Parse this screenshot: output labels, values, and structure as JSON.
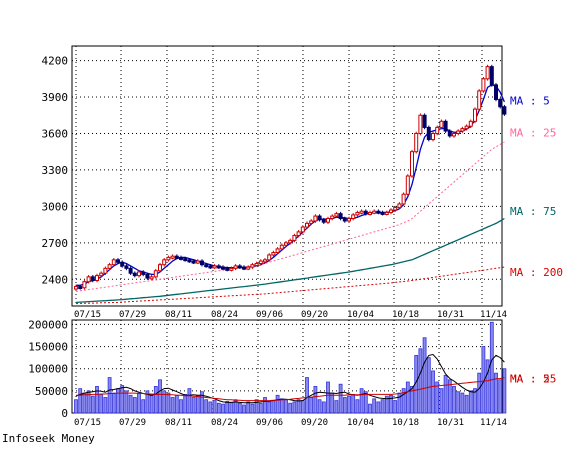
{
  "footer": "Infoseek Money",
  "colors": {
    "up": "#cc0000",
    "down": "#000066",
    "volume": "#3333dd",
    "ma5": "#0000cc",
    "ma25": "#ff6699",
    "ma75": "#006666",
    "ma200": "#dd0000"
  },
  "chart_data": [
    {
      "type": "candlestick",
      "title": "",
      "x_ticks": [
        "07/15",
        "07/29",
        "08/11",
        "08/24",
        "09/06",
        "09/20",
        "10/04",
        "10/18",
        "10/31",
        "11/14"
      ],
      "y_ticks": [
        2400,
        2700,
        3000,
        3300,
        3600,
        3900,
        4200
      ],
      "ylim": [
        2180,
        4320
      ],
      "grid": true,
      "close": [
        2340,
        2330,
        2380,
        2420,
        2390,
        2430,
        2450,
        2490,
        2520,
        2560,
        2540,
        2510,
        2490,
        2450,
        2430,
        2460,
        2440,
        2410,
        2420,
        2470,
        2520,
        2560,
        2580,
        2590,
        2580,
        2570,
        2560,
        2550,
        2540,
        2550,
        2520,
        2510,
        2500,
        2510,
        2500,
        2490,
        2480,
        2490,
        2510,
        2500,
        2490,
        2500,
        2520,
        2530,
        2550,
        2560,
        2600,
        2620,
        2650,
        2680,
        2700,
        2720,
        2760,
        2790,
        2830,
        2860,
        2880,
        2920,
        2890,
        2870,
        2900,
        2920,
        2940,
        2900,
        2880,
        2900,
        2930,
        2950,
        2960,
        2940,
        2950,
        2960,
        2950,
        2940,
        2950,
        2970,
        2990,
        3020,
        3100,
        3250,
        3450,
        3600,
        3750,
        3650,
        3550,
        3600,
        3650,
        3700,
        3620,
        3580,
        3600,
        3620,
        3640,
        3660,
        3700,
        3800,
        3950,
        4050,
        4150,
        4000,
        3880,
        3820,
        3760
      ],
      "series": [
        {
          "name": "MA : 5",
          "values": [
            2350,
            2350,
            2360,
            2380,
            2390,
            2400,
            2420,
            2450,
            2480,
            2510,
            2530,
            2540,
            2530,
            2510,
            2490,
            2470,
            2460,
            2450,
            2440,
            2440,
            2460,
            2490,
            2520,
            2550,
            2570,
            2580,
            2580,
            2570,
            2560,
            2550,
            2540,
            2530,
            2520,
            2510,
            2505,
            2500,
            2495,
            2495,
            2495,
            2500,
            2500,
            2500,
            2505,
            2510,
            2520,
            2535,
            2555,
            2580,
            2610,
            2640,
            2670,
            2695,
            2725,
            2755,
            2790,
            2820,
            2855,
            2880,
            2895,
            2895,
            2895,
            2900,
            2910,
            2910,
            2905,
            2900,
            2900,
            2910,
            2925,
            2935,
            2945,
            2950,
            2950,
            2950,
            2950,
            2955,
            2965,
            2980,
            3015,
            3080,
            3180,
            3320,
            3470,
            3570,
            3610,
            3620,
            3630,
            3640,
            3640,
            3620,
            3610,
            3610,
            3620,
            3635,
            3660,
            3710,
            3790,
            3880,
            3980,
            4000,
            3990,
            3940,
            3860
          ]
        },
        {
          "name": "MA : 25",
          "values": [
            2300,
            2305,
            2310,
            2315,
            2320,
            2325,
            2330,
            2335,
            2340,
            2345,
            2350,
            2355,
            2360,
            2365,
            2370,
            2375,
            2380,
            2385,
            2390,
            2395,
            2400,
            2405,
            2410,
            2415,
            2420,
            2425,
            2430,
            2435,
            2440,
            2445,
            2450,
            2455,
            2460,
            2465,
            2470,
            2475,
            2480,
            2485,
            2490,
            2495,
            2500,
            2505,
            2510,
            2515,
            2520,
            2530,
            2540,
            2550,
            2560,
            2570,
            2580,
            2590,
            2600,
            2610,
            2620,
            2630,
            2640,
            2650,
            2660,
            2670,
            2680,
            2690,
            2700,
            2710,
            2720,
            2730,
            2740,
            2750,
            2760,
            2770,
            2780,
            2790,
            2800,
            2810,
            2820,
            2830,
            2840,
            2850,
            2865,
            2880,
            2900,
            2930,
            2960,
            2990,
            3020,
            3050,
            3080,
            3110,
            3140,
            3170,
            3200,
            3230,
            3260,
            3290,
            3320,
            3350,
            3380,
            3410,
            3440,
            3470,
            3490,
            3510,
            3530
          ]
        },
        {
          "name": "MA : 75",
          "values": [
            2210,
            2212,
            2214,
            2216,
            2218,
            2220,
            2222,
            2224,
            2226,
            2228,
            2230,
            2233,
            2236,
            2239,
            2242,
            2245,
            2248,
            2251,
            2254,
            2257,
            2260,
            2264,
            2268,
            2272,
            2276,
            2280,
            2284,
            2288,
            2292,
            2296,
            2300,
            2304,
            2308,
            2312,
            2316,
            2320,
            2324,
            2328,
            2332,
            2336,
            2340,
            2344,
            2348,
            2352,
            2356,
            2360,
            2365,
            2370,
            2375,
            2380,
            2385,
            2390,
            2395,
            2400,
            2405,
            2410,
            2415,
            2420,
            2425,
            2430,
            2435,
            2440,
            2445,
            2450,
            2455,
            2460,
            2466,
            2472,
            2478,
            2484,
            2490,
            2496,
            2502,
            2508,
            2514,
            2520,
            2528,
            2536,
            2544,
            2552,
            2560,
            2575,
            2590,
            2605,
            2620,
            2635,
            2650,
            2665,
            2680,
            2695,
            2710,
            2725,
            2740,
            2755,
            2770,
            2785,
            2800,
            2815,
            2830,
            2845,
            2860,
            2880,
            2900
          ]
        },
        {
          "name": "MA : 200",
          "values": [
            2200,
            2201,
            2202,
            2203,
            2204,
            2205,
            2206,
            2207,
            2208,
            2209,
            2210,
            2212,
            2214,
            2216,
            2218,
            2220,
            2222,
            2224,
            2226,
            2228,
            2230,
            2232,
            2234,
            2236,
            2238,
            2240,
            2242,
            2244,
            2246,
            2248,
            2250,
            2252,
            2254,
            2256,
            2258,
            2260,
            2262,
            2264,
            2266,
            2268,
            2270,
            2272,
            2274,
            2276,
            2278,
            2280,
            2283,
            2286,
            2289,
            2292,
            2295,
            2298,
            2301,
            2304,
            2307,
            2310,
            2313,
            2316,
            2319,
            2322,
            2325,
            2328,
            2331,
            2334,
            2337,
            2340,
            2343,
            2346,
            2349,
            2352,
            2355,
            2358,
            2361,
            2364,
            2367,
            2370,
            2374,
            2378,
            2382,
            2386,
            2390,
            2395,
            2400,
            2405,
            2410,
            2415,
            2420,
            2425,
            2430,
            2435,
            2440,
            2445,
            2450,
            2455,
            2460,
            2465,
            2470,
            2475,
            2480,
            2485,
            2490,
            2495,
            2500
          ]
        }
      ]
    },
    {
      "type": "bar",
      "title": "",
      "x_ticks": [
        "07/15",
        "07/29",
        "08/11",
        "08/24",
        "09/06",
        "09/20",
        "10/04",
        "10/18",
        "10/31",
        "11/14"
      ],
      "y_ticks": [
        0,
        50000,
        100000,
        150000,
        200000
      ],
      "ylim": [
        0,
        210000
      ],
      "grid": true,
      "values": [
        30000,
        55000,
        45000,
        50000,
        38000,
        60000,
        42000,
        35000,
        80000,
        45000,
        55000,
        62000,
        50000,
        40000,
        35000,
        45000,
        30000,
        50000,
        40000,
        60000,
        75000,
        50000,
        45000,
        35000,
        40000,
        30000,
        42000,
        55000,
        35000,
        40000,
        48000,
        30000,
        25000,
        28000,
        22000,
        20000,
        26000,
        24000,
        30000,
        22000,
        18000,
        25000,
        20000,
        30000,
        22000,
        35000,
        25000,
        28000,
        40000,
        32000,
        30000,
        22000,
        25000,
        30000,
        28000,
        80000,
        35000,
        60000,
        30000,
        25000,
        70000,
        45000,
        28000,
        65000,
        35000,
        38000,
        42000,
        30000,
        55000,
        48000,
        20000,
        32000,
        25000,
        30000,
        38000,
        40000,
        28000,
        45000,
        55000,
        70000,
        60000,
        130000,
        145000,
        170000,
        125000,
        95000,
        70000,
        55000,
        85000,
        75000,
        60000,
        48000,
        45000,
        40000,
        50000,
        55000,
        90000,
        150000,
        120000,
        205000,
        90000,
        75000,
        100000
      ],
      "series": [
        {
          "name": "MA : 5",
          "values": [
            38000,
            42000,
            45000,
            47000,
            48000,
            50000,
            49000,
            47000,
            52000,
            53000,
            55000,
            57000,
            58000,
            55000,
            50000,
            47000,
            44000,
            42000,
            40000,
            43000,
            50000,
            55000,
            56000,
            52000,
            48000,
            44000,
            40000,
            40000,
            41000,
            40000,
            40000,
            38000,
            35000,
            32000,
            28000,
            25000,
            24000,
            24000,
            25000,
            24000,
            23000,
            23000,
            23000,
            24000,
            25000,
            26000,
            27000,
            28000,
            30000,
            31000,
            31000,
            30000,
            28000,
            27000,
            28000,
            35000,
            40000,
            45000,
            47000,
            46000,
            45000,
            45000,
            44000,
            46000,
            47000,
            43000,
            41000,
            40000,
            42000,
            44000,
            40000,
            37000,
            34000,
            33000,
            32000,
            33000,
            34000,
            36000,
            42000,
            48000,
            55000,
            70000,
            90000,
            115000,
            130000,
            132000,
            122000,
            105000,
            88000,
            78000,
            72000,
            65000,
            58000,
            52000,
            48000,
            47000,
            55000,
            70000,
            90000,
            120000,
            130000,
            125000,
            115000
          ]
        },
        {
          "name": "MA : 25",
          "values": [
            40000,
            40000,
            41000,
            41000,
            42000,
            42000,
            43000,
            43000,
            44000,
            44000,
            45000,
            45000,
            45000,
            45000,
            45000,
            44000,
            44000,
            43000,
            43000,
            42000,
            42000,
            42000,
            41000,
            41000,
            40000,
            40000,
            39000,
            39000,
            38000,
            37000,
            36000,
            35000,
            34000,
            33000,
            32000,
            31000,
            30000,
            30000,
            29000,
            29000,
            28000,
            28000,
            28000,
            28000,
            28000,
            28000,
            28000,
            29000,
            29000,
            30000,
            30000,
            31000,
            32000,
            33000,
            34000,
            35000,
            36000,
            37000,
            38000,
            39000,
            40000,
            40000,
            40000,
            40000,
            40000,
            41000,
            41000,
            41000,
            41000,
            42000,
            42000,
            42000,
            42000,
            42000,
            42000,
            42000,
            43000,
            44000,
            46000,
            48000,
            50000,
            52000,
            54000,
            56000,
            58000,
            60000,
            61000,
            62000,
            63000,
            64000,
            65000,
            66000,
            67000,
            68000,
            69000,
            70000,
            71000,
            72000,
            73000,
            75000,
            77000,
            78000,
            80000
          ]
        }
      ]
    }
  ]
}
